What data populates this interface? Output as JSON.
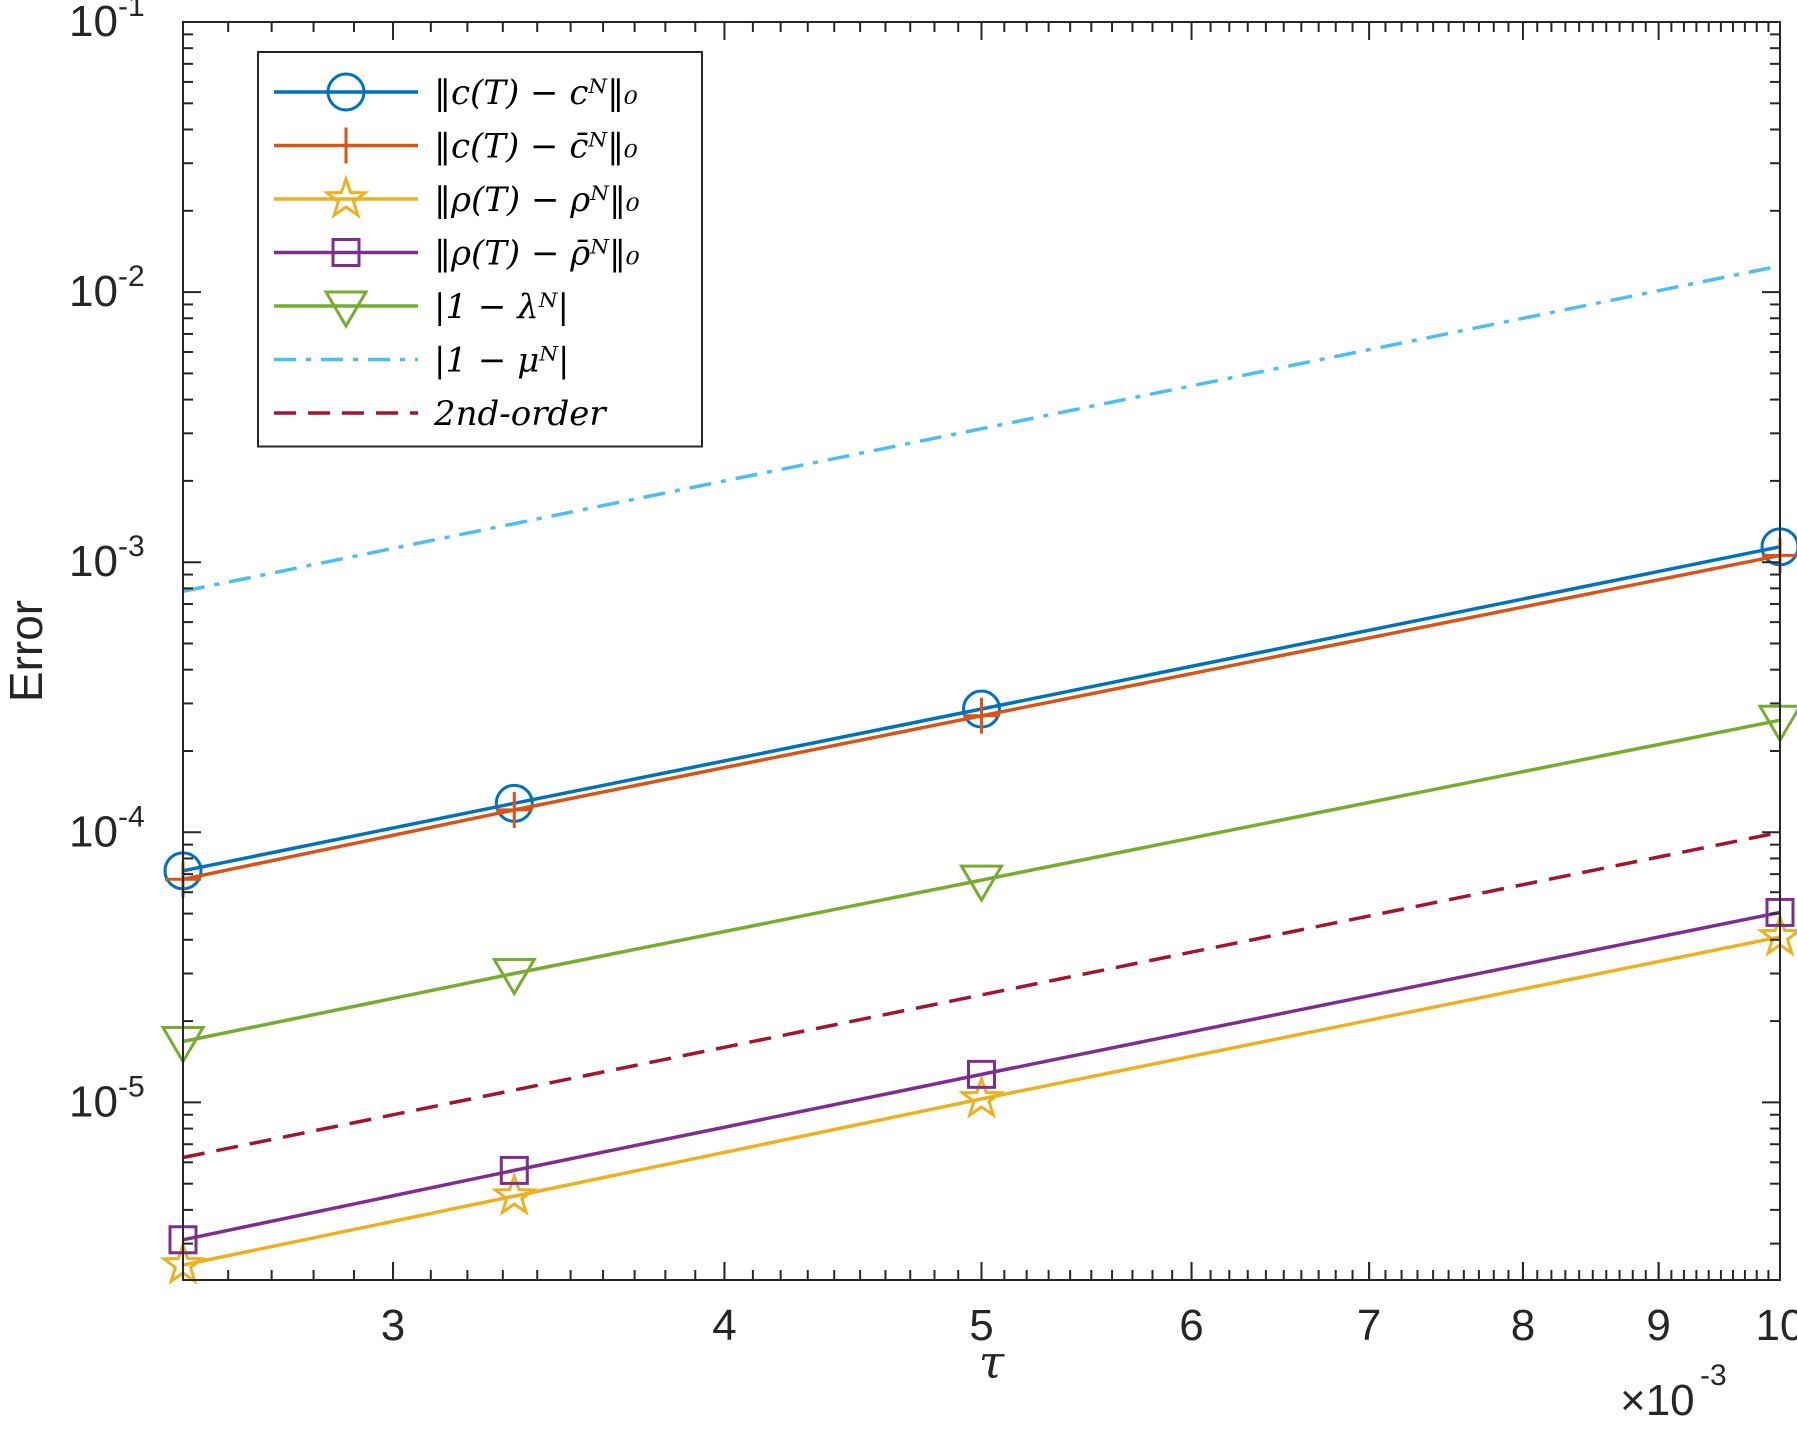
{
  "chart_data": {
    "type": "line",
    "title": "",
    "xlabel": "τ",
    "ylabel": "Error",
    "x_scale": "log",
    "y_scale": "log",
    "xlim": [
      0.0025,
      0.01
    ],
    "ylim": [
      2.2e-06,
      0.1
    ],
    "x_exponent_label": "×10",
    "x_exponent_power": "-3",
    "x_ticks": [
      {
        "value": 0.003,
        "label": "3"
      },
      {
        "value": 0.004,
        "label": "4"
      },
      {
        "value": 0.005,
        "label": "5"
      },
      {
        "value": 0.006,
        "label": "6"
      },
      {
        "value": 0.007,
        "label": "7"
      },
      {
        "value": 0.008,
        "label": "8"
      },
      {
        "value": 0.009,
        "label": "9"
      },
      {
        "value": 0.01,
        "label": "10"
      }
    ],
    "y_ticks": [
      {
        "value": 1e-05,
        "base": "10",
        "exp": "-5"
      },
      {
        "value": 0.0001,
        "base": "10",
        "exp": "-4"
      },
      {
        "value": 0.001,
        "base": "10",
        "exp": "-3"
      },
      {
        "value": 0.01,
        "base": "10",
        "exp": "-2"
      },
      {
        "value": 0.1,
        "base": "10",
        "exp": "-1"
      }
    ],
    "grid": false,
    "legend_position": "top-left",
    "x": [
      0.0025,
      0.003333,
      0.005,
      0.01
    ],
    "series": [
      {
        "name": "‖c(T) − cᴺ‖₀",
        "values": [
          7.2e-05,
          0.000128,
          0.000286,
          0.00114
        ],
        "color": "#0072BD",
        "marker": "circle",
        "dash": "solid"
      },
      {
        "name": "‖c(T) − c̄ᴺ‖₀",
        "values": [
          6.7e-05,
          0.000121,
          0.00027,
          0.00106
        ],
        "color": "#D95319",
        "marker": "plus",
        "dash": "solid"
      },
      {
        "name": "‖ρ(T) − ρᴺ‖₀",
        "values": [
          2.5e-06,
          4.5e-06,
          1.03e-05,
          4.1e-05
        ],
        "color": "#EDB120",
        "marker": "star",
        "dash": "solid"
      },
      {
        "name": "‖ρ(T) − ρ̄ᴺ‖₀",
        "values": [
          3.1e-06,
          5.6e-06,
          1.27e-05,
          5.05e-05
        ],
        "color": "#7E2F8E",
        "marker": "square",
        "dash": "solid"
      },
      {
        "name": "|1 − λᴺ|",
        "values": [
          1.68e-05,
          3e-05,
          6.65e-05,
          0.00026
        ],
        "color": "#77AC30",
        "marker": "triangle-down",
        "dash": "solid"
      },
      {
        "name": "|1 − μᴺ|",
        "values": [
          0.00078,
          0.00139,
          0.00312,
          0.0125
        ],
        "color": "#4DBEEE",
        "marker": "none",
        "dash": "dashdot"
      },
      {
        "name": "2nd-order",
        "values": [
          6.25e-06,
          1.11e-05,
          2.5e-05,
          0.0001
        ],
        "color": "#A2142F",
        "marker": "none",
        "dash": "dashed"
      }
    ]
  }
}
